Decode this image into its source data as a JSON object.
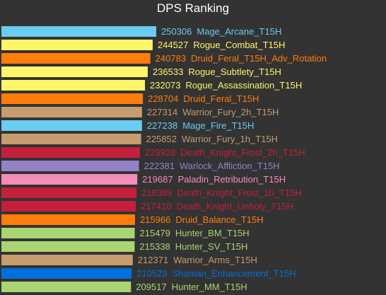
{
  "chart_data": {
    "type": "bar",
    "orientation": "horizontal",
    "title": "DPS Ranking",
    "xlabel": "",
    "ylabel": "",
    "xlim": [
      0,
      250306
    ],
    "grid": false,
    "legend": "none",
    "background": "#333333",
    "bars": [
      {
        "name": "Mage_Arcane_T15H",
        "value": 250306,
        "color": "#69CCF0"
      },
      {
        "name": "Rogue_Combat_T15H",
        "value": 244527,
        "color": "#FFF569"
      },
      {
        "name": "Druid_Feral_T15H_Adv_Rotation",
        "value": 240783,
        "color": "#FF7D0A"
      },
      {
        "name": "Rogue_Subtlety_T15H",
        "value": 236533,
        "color": "#FFF569"
      },
      {
        "name": "Rogue_Assassination_T15H",
        "value": 232073,
        "color": "#FFF569"
      },
      {
        "name": "Druid_Feral_T15H",
        "value": 228704,
        "color": "#FF7D0A"
      },
      {
        "name": "Warrior_Fury_2h_T15H",
        "value": 227314,
        "color": "#C79C6E"
      },
      {
        "name": "Mage_Fire_T15H",
        "value": 227238,
        "color": "#69CCF0"
      },
      {
        "name": "Warrior_Fury_1h_T15H",
        "value": 225852,
        "color": "#C79C6E"
      },
      {
        "name": "Death_Knight_Frost_2h_T15H",
        "value": 223928,
        "color": "#C41F3B"
      },
      {
        "name": "Warlock_Affliction_T15H",
        "value": 222381,
        "color": "#9482C9"
      },
      {
        "name": "Paladin_Retribution_T15H",
        "value": 219687,
        "color": "#F58CBA"
      },
      {
        "name": "Death_Knight_Frost_1h_T15H",
        "value": 218389,
        "color": "#C41F3B"
      },
      {
        "name": "Death_Knight_Unholy_T15H",
        "value": 217410,
        "color": "#C41F3B"
      },
      {
        "name": "Druid_Balance_T15H",
        "value": 215966,
        "color": "#FF7D0A"
      },
      {
        "name": "Hunter_BM_T15H",
        "value": 215479,
        "color": "#ABD473"
      },
      {
        "name": "Hunter_SV_T15H",
        "value": 215338,
        "color": "#ABD473"
      },
      {
        "name": "Warrior_Arms_T15H",
        "value": 212371,
        "color": "#C79C6E"
      },
      {
        "name": "Shaman_Enhancement_T15H",
        "value": 210529,
        "color": "#0070DE"
      },
      {
        "name": "Hunter_MM_T15H",
        "value": 209517,
        "color": "#ABD473"
      }
    ]
  }
}
